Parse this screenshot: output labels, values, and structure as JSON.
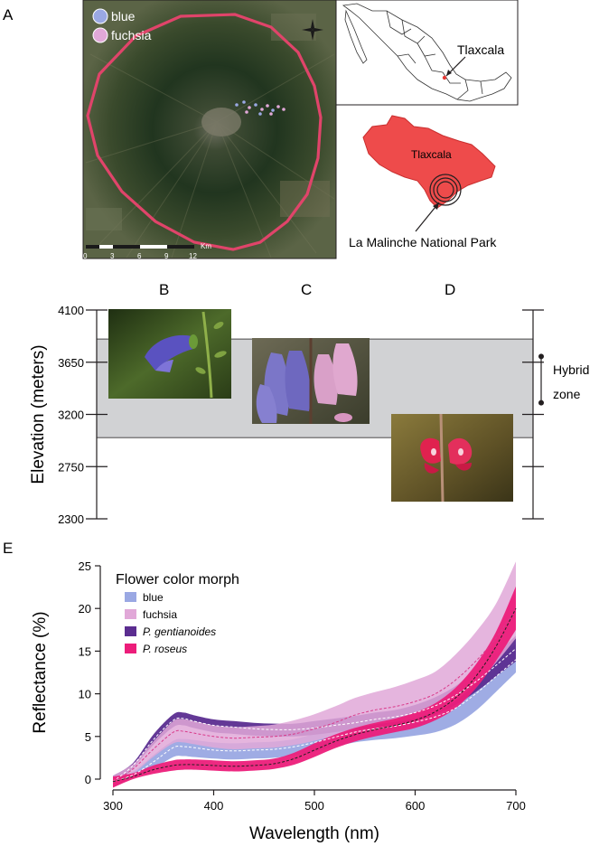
{
  "panels": {
    "A": "A",
    "B": "B",
    "C": "C",
    "D": "D",
    "E": "E"
  },
  "map": {
    "legend": [
      {
        "label": "blue",
        "color": "#9aa8e3"
      },
      {
        "label": "fuchsia",
        "color": "#e1a8d8"
      }
    ],
    "scalebar": {
      "ticks": [
        "0",
        "3",
        "6",
        "9",
        "12"
      ],
      "unit": "Km"
    },
    "mexico_label": "Tlaxcala",
    "state_label": "Tlaxcala",
    "park_label": "La Malinche National Park",
    "boundary_color": "#e0446a",
    "state_color": "#ee4b4b"
  },
  "elevation_chart": {
    "ylabel": "Elevation (meters)",
    "ticks": [
      4100,
      3650,
      3200,
      2750,
      2300
    ],
    "ylim": [
      2300,
      4100
    ],
    "hybrid_zone_band": [
      3000,
      3850
    ],
    "hybrid_marker": [
      3300,
      3700
    ],
    "hybrid_label_line1": "Hybrid",
    "hybrid_label_line2": "zone",
    "band_color": "#d1d2d4"
  },
  "chart_data": {
    "type": "area",
    "title": "",
    "xlabel": "Wavelength (nm)",
    "ylabel": "Reflectance (%)",
    "xlim": [
      300,
      700
    ],
    "ylim": [
      0,
      25
    ],
    "xticks": [
      300,
      400,
      500,
      600,
      700
    ],
    "yticks": [
      0,
      5,
      10,
      15,
      20,
      25
    ],
    "legend_title": "Flower color morph",
    "legend_position": "top-left",
    "x": [
      300,
      320,
      340,
      360,
      370,
      380,
      400,
      420,
      440,
      460,
      480,
      500,
      520,
      540,
      560,
      580,
      600,
      620,
      640,
      660,
      680,
      700
    ],
    "series": [
      {
        "name": "blue",
        "color": "#9aa8e3",
        "line_color": "#ffffff",
        "mean": [
          -0.3,
          0.5,
          2.0,
          3.7,
          3.8,
          3.7,
          3.4,
          3.3,
          3.4,
          3.5,
          3.8,
          4.3,
          4.9,
          5.5,
          5.9,
          6.2,
          6.7,
          7.3,
          8.3,
          10.0,
          12.0,
          14.0
        ],
        "lower": [
          -1.0,
          0.2,
          1.2,
          2.6,
          2.7,
          2.6,
          2.4,
          2.3,
          2.4,
          2.5,
          2.8,
          3.2,
          3.8,
          4.3,
          4.6,
          4.8,
          5.1,
          5.5,
          6.4,
          8.0,
          10.2,
          12.5
        ],
        "upper": [
          0.3,
          0.9,
          2.8,
          4.5,
          4.7,
          4.6,
          4.3,
          4.2,
          4.3,
          4.4,
          4.7,
          5.3,
          5.9,
          6.5,
          6.9,
          7.3,
          8.0,
          8.8,
          10.0,
          11.8,
          14.0,
          15.8
        ]
      },
      {
        "name": "fuchsia",
        "color": "#e1a8d8",
        "line_color": "#d93a8a",
        "mean": [
          -0.3,
          1.2,
          3.5,
          5.5,
          5.6,
          5.4,
          5.0,
          4.8,
          4.9,
          5.0,
          5.3,
          5.9,
          6.6,
          7.5,
          8.1,
          8.5,
          9.1,
          10.0,
          11.6,
          13.8,
          16.5,
          20.0
        ],
        "lower": [
          -1.0,
          0.6,
          2.6,
          4.2,
          4.3,
          4.1,
          3.7,
          3.5,
          3.6,
          3.7,
          4.0,
          4.5,
          5.1,
          5.9,
          6.4,
          6.7,
          7.1,
          7.8,
          9.2,
          11.2,
          13.6,
          16.5
        ],
        "upper": [
          0.4,
          1.8,
          4.4,
          6.8,
          7.0,
          6.8,
          6.3,
          6.1,
          6.2,
          6.4,
          6.9,
          7.6,
          8.5,
          9.5,
          10.2,
          10.8,
          11.6,
          12.6,
          14.6,
          17.2,
          20.5,
          25.5
        ]
      },
      {
        "name": "P. gentianoides",
        "color": "#5b2d90",
        "line_color": "#ffffff",
        "mean": [
          -0.3,
          1.6,
          4.6,
          6.9,
          7.1,
          6.8,
          6.3,
          6.1,
          5.9,
          5.8,
          5.8,
          6.0,
          6.3,
          6.6,
          7.0,
          7.3,
          7.8,
          8.6,
          9.8,
          11.4,
          13.3,
          15.3
        ],
        "lower": [
          -1.0,
          1.3,
          4.0,
          6.1,
          6.3,
          6.0,
          5.5,
          5.3,
          5.1,
          5.0,
          5.0,
          5.2,
          5.5,
          5.8,
          6.1,
          6.4,
          6.9,
          7.6,
          8.7,
          10.2,
          12.0,
          13.8
        ],
        "upper": [
          0.4,
          1.9,
          5.2,
          7.6,
          7.8,
          7.5,
          7.0,
          6.8,
          6.6,
          6.5,
          6.5,
          6.8,
          7.1,
          7.4,
          7.8,
          8.1,
          8.7,
          9.6,
          10.9,
          12.7,
          14.7,
          16.8
        ]
      },
      {
        "name": "P. roseus",
        "color": "#ec1d7a",
        "line_color": "#231f20",
        "mean": [
          -0.3,
          0.3,
          1.1,
          1.6,
          1.7,
          1.7,
          1.6,
          1.5,
          1.6,
          1.8,
          2.4,
          3.4,
          4.4,
          5.2,
          5.8,
          6.3,
          6.9,
          7.9,
          9.5,
          12.0,
          15.5,
          20.0
        ],
        "lower": [
          -1.0,
          0.0,
          0.6,
          1.0,
          1.1,
          1.1,
          1.0,
          0.9,
          1.0,
          1.2,
          1.7,
          2.6,
          3.6,
          4.4,
          5.0,
          5.5,
          6.0,
          6.9,
          8.3,
          10.6,
          13.8,
          17.5
        ],
        "upper": [
          0.3,
          0.7,
          1.6,
          2.2,
          2.3,
          2.3,
          2.2,
          2.1,
          2.2,
          2.4,
          3.1,
          4.2,
          5.2,
          6.0,
          6.6,
          7.1,
          7.8,
          8.9,
          10.7,
          13.4,
          17.2,
          22.6
        ]
      }
    ]
  }
}
